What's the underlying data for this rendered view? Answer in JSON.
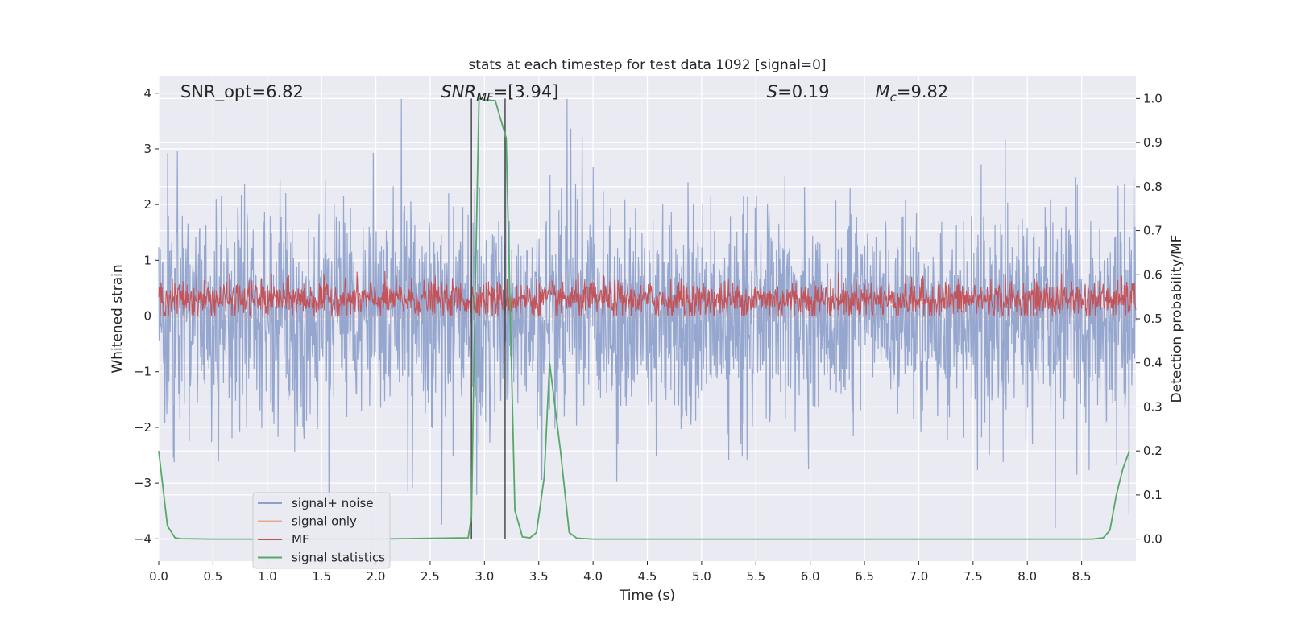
{
  "chart_data": {
    "type": "line",
    "title": "stats at each timestep for test data 1092 [signal=0]",
    "xlabel": "Time (s)",
    "ylabel_left": "Whitened strain",
    "ylabel_right": "Detection probability/MF",
    "xlim": [
      0.0,
      9.0
    ],
    "ylim_left": [
      -4.4,
      4.3
    ],
    "ylim_right": [
      -0.05,
      1.05
    ],
    "xticks": [
      0.0,
      0.5,
      1.0,
      1.5,
      2.0,
      2.5,
      3.0,
      3.5,
      4.0,
      4.5,
      5.0,
      5.5,
      6.0,
      6.5,
      7.0,
      7.5,
      8.0,
      8.5
    ],
    "xtick_labels": [
      "0.0",
      "0.5",
      "1.0",
      "1.5",
      "2.0",
      "2.5",
      "3.0",
      "3.5",
      "4.0",
      "4.5",
      "5.0",
      "5.5",
      "6.0",
      "6.5",
      "7.0",
      "7.5",
      "8.0",
      "8.5"
    ],
    "yticks_left": [
      -4,
      -3,
      -2,
      -1,
      0,
      1,
      2,
      3,
      4
    ],
    "ytick_labels_left": [
      "−4",
      "−3",
      "−2",
      "−1",
      "0",
      "1",
      "2",
      "3",
      "4"
    ],
    "yticks_right": [
      0.0,
      0.1,
      0.2,
      0.3,
      0.4,
      0.5,
      0.6,
      0.7,
      0.8,
      0.9,
      1.0
    ],
    "ytick_labels_right": [
      "0.0",
      "0.1",
      "0.2",
      "0.3",
      "0.4",
      "0.5",
      "0.6",
      "0.7",
      "0.8",
      "0.9",
      "1.0"
    ],
    "grid": true,
    "legend_position": "lower-left",
    "series": [
      {
        "name": "signal+ noise",
        "color": "#8da0cb",
        "kind": "noise-trace",
        "amplitude_range": [
          -4.0,
          3.9
        ]
      },
      {
        "name": "signal only",
        "color": "#e8a98c",
        "kind": "flat-zero"
      },
      {
        "name": "MF",
        "color": "#c44e52",
        "kind": "noise-trace",
        "amplitude_range": [
          0.0,
          1.0
        ]
      },
      {
        "name": "signal statistics",
        "color": "#55a868",
        "axis": "right",
        "x": [
          0.0,
          0.08,
          0.15,
          0.2,
          0.5,
          1.0,
          2.0,
          2.85,
          2.88,
          2.91,
          2.95,
          3.0,
          3.1,
          3.2,
          3.28,
          3.35,
          3.42,
          3.48,
          3.55,
          3.6,
          3.7,
          3.78,
          3.85,
          4.0,
          5.0,
          6.0,
          7.0,
          8.0,
          8.6,
          8.7,
          8.76,
          8.82,
          8.88,
          8.94
        ],
        "y": [
          0.2,
          0.03,
          0.003,
          0.001,
          0.0,
          0.0,
          0.0,
          0.003,
          0.05,
          0.5,
          1.0,
          0.997,
          0.995,
          0.91,
          0.065,
          0.005,
          0.003,
          0.015,
          0.14,
          0.4,
          0.2,
          0.015,
          0.002,
          0.0,
          0.0,
          0.0,
          0.0,
          0.0,
          0.0,
          0.003,
          0.02,
          0.1,
          0.16,
          0.2
        ]
      }
    ],
    "vlines": [
      2.88,
      3.19
    ],
    "annotations": [
      {
        "text": "SNR_opt=6.82",
        "x": 0.2
      },
      {
        "text": "SNR_MF=[3.94]",
        "base": "SNR",
        "sub": "MF",
        "rest": "=[3.94]",
        "italic": true,
        "x": 2.6
      },
      {
        "text": "S=0.19",
        "base": "S",
        "rest": "=0.19",
        "italic": true,
        "x": 5.6
      },
      {
        "text": "M_c=9.82",
        "base": "M",
        "sub": "c",
        "rest": "=9.82",
        "italic": true,
        "x": 6.6
      }
    ]
  },
  "legend": {
    "items": [
      "signal+ noise",
      "signal only",
      "MF",
      "signal statistics"
    ]
  }
}
